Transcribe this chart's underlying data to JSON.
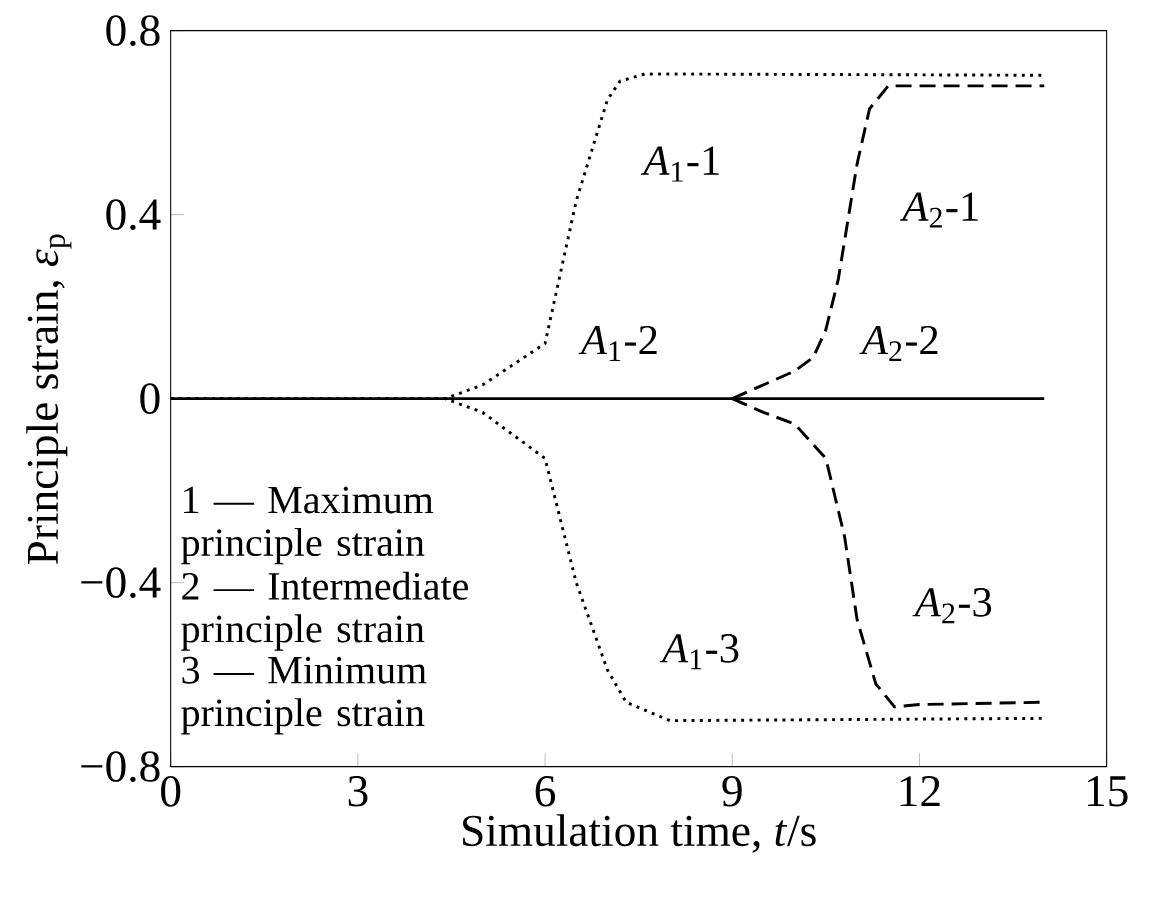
{
  "chart_data": {
    "type": "line",
    "xlabel": "Simulation time, *t*/s",
    "ylabel": "Principle strain, *ε*$_{p}$",
    "xlim": [
      0,
      15
    ],
    "xticks": [
      0,
      3,
      6,
      9,
      12,
      15
    ],
    "ylim": [
      -0.8,
      0.8
    ],
    "yticks": [
      {
        "value": -0.8,
        "label": "−0.8"
      },
      {
        "value": -0.4,
        "label": "−0.4"
      },
      0,
      0.4,
      0.8
    ],
    "grid": false,
    "marker": "none",
    "series": [
      {
        "color": "#000000",
        "line_style": "solid",
        "x": [
          0,
          14
        ],
        "values": [
          0,
          0
        ]
      },
      {
        "color": "#000000",
        "line_style": "dotted",
        "x": [
          0,
          4.4,
          5,
          6,
          6.5,
          7,
          7.2,
          7.6,
          14
        ],
        "values": [
          0,
          0,
          0.03,
          0.12,
          0.43,
          0.65,
          0.69,
          0.706,
          0.703
        ]
      },
      {
        "color": "#000000",
        "line_style": "dotted",
        "x": [
          0,
          4.4,
          5,
          6,
          6.5,
          7,
          7.3,
          8,
          14
        ],
        "values": [
          0,
          0,
          -0.03,
          -0.13,
          -0.4,
          -0.59,
          -0.66,
          -0.7,
          -0.695
        ]
      },
      {
        "color": "#000000",
        "line_style": "dashed",
        "x": [
          9,
          9.5,
          10,
          10.3,
          10.5,
          10.7,
          11,
          11.2,
          11.5,
          12,
          14
        ],
        "values": [
          0,
          0.03,
          0.06,
          0.09,
          0.15,
          0.26,
          0.51,
          0.63,
          0.68,
          0.68,
          0.68
        ]
      },
      {
        "color": "#000000",
        "line_style": "dashed",
        "x": [
          9,
          9.5,
          10,
          10.5,
          10.8,
          11,
          11.3,
          11.6,
          12,
          14
        ],
        "values": [
          0,
          -0.03,
          -0.055,
          -0.13,
          -0.3,
          -0.48,
          -0.62,
          -0.67,
          -0.665,
          -0.66
        ]
      }
    ],
    "annotations": [
      "*A*$_{1}$-1",
      "*A*$_{2}$-1",
      "*A*$_{1}$-2",
      "*A*$_{2}$-2",
      "*A*$_{1}$-3",
      "*A*$_{2}$-3",
      "1 — Maximum principle strain",
      "2 — Intermediate principle strain",
      "3 — Minimum principle strain"
    ]
  }
}
